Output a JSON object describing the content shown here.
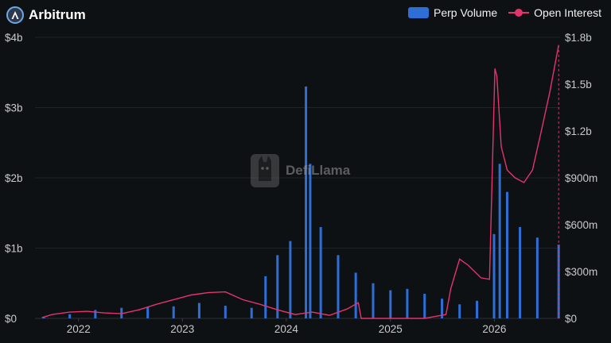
{
  "header": {
    "title": "Arbitrum",
    "logo_icon": "arbitrum-logo-icon"
  },
  "legend": [
    {
      "label": "Perp Volume",
      "color": "#2d6fd6",
      "kind": "bar"
    },
    {
      "label": "Open Interest",
      "color": "#e5336b",
      "kind": "line"
    }
  ],
  "watermark": {
    "text": "DefiLlama",
    "icon": "llama-icon"
  },
  "chart_data": {
    "type": "bar",
    "x_axis": {
      "type": "time",
      "range": [
        "2021-08-01",
        "2026-08-20"
      ],
      "tick_labels": [
        "2022",
        "2023",
        "2024",
        "2025",
        "2026"
      ],
      "tick_dates": [
        "2022-01-01",
        "2023-01-01",
        "2024-01-01",
        "2025-01-01",
        "2026-01-01"
      ]
    },
    "y_left": {
      "label": "",
      "ylim": [
        0,
        4000000000
      ],
      "tick_labels": [
        "$0",
        "$1b",
        "$2b",
        "$3b",
        "$4b"
      ],
      "tick_values": [
        0,
        1000000000,
        2000000000,
        3000000000,
        4000000000
      ]
    },
    "y_right": {
      "label": "",
      "ylim": [
        0,
        1800000000
      ],
      "tick_labels": [
        "$0",
        "$300m",
        "$600m",
        "$900m",
        "$1.2b",
        "$1.5b",
        "$1.8b"
      ],
      "tick_values": [
        0,
        300000000,
        600000000,
        900000000,
        1200000000,
        1500000000,
        1800000000
      ]
    },
    "grid": true,
    "legend_position": "top-right",
    "series": [
      {
        "name": "Perp Volume",
        "type": "bar",
        "axis": "left",
        "color": "#2d6fd6",
        "x": [
          "2021-09-01",
          "2021-12-01",
          "2022-03-01",
          "2022-06-01",
          "2022-09-01",
          "2022-12-01",
          "2023-03-01",
          "2023-06-01",
          "2023-09-01",
          "2023-10-20",
          "2023-12-01",
          "2024-01-15",
          "2024-03-10",
          "2024-03-25",
          "2024-05-01",
          "2024-07-01",
          "2024-09-01",
          "2024-11-01",
          "2025-01-01",
          "2025-03-01",
          "2025-05-01",
          "2025-07-01",
          "2025-09-01",
          "2025-11-01",
          "2025-12-31",
          "2026-01-20",
          "2026-02-15",
          "2026-04-01",
          "2026-06-01",
          "2026-08-15"
        ],
        "values": [
          20000000,
          60000000,
          120000000,
          150000000,
          160000000,
          170000000,
          220000000,
          180000000,
          150000000,
          600000000,
          900000000,
          1100000000,
          3300000000,
          2200000000,
          1300000000,
          900000000,
          650000000,
          500000000,
          400000000,
          420000000,
          350000000,
          280000000,
          200000000,
          250000000,
          1200000000,
          2200000000,
          1800000000,
          1300000000,
          1150000000,
          1050000000
        ]
      },
      {
        "name": "Open Interest",
        "type": "line",
        "axis": "right",
        "color": "#e5336b",
        "x": [
          "2021-08-25",
          "2021-10-01",
          "2021-12-01",
          "2022-02-01",
          "2022-04-01",
          "2022-06-01",
          "2022-08-01",
          "2022-10-01",
          "2022-12-01",
          "2023-02-01",
          "2023-04-01",
          "2023-06-01",
          "2023-08-01",
          "2023-10-01",
          "2023-12-01",
          "2024-02-01",
          "2024-04-01",
          "2024-06-01",
          "2024-08-01",
          "2024-09-10",
          "2024-09-20",
          "2024-12-01",
          "2025-03-01",
          "2025-05-01",
          "2025-06-15",
          "2025-07-15",
          "2025-08-01",
          "2025-09-01",
          "2025-10-01",
          "2025-11-15",
          "2025-12-15",
          "2026-01-03",
          "2026-01-10",
          "2026-01-25",
          "2026-02-15",
          "2026-03-15",
          "2026-04-15",
          "2026-05-15",
          "2026-06-15",
          "2026-07-15",
          "2026-08-15"
        ],
        "values": [
          5000000,
          25000000,
          40000000,
          45000000,
          35000000,
          30000000,
          55000000,
          90000000,
          120000000,
          150000000,
          165000000,
          170000000,
          120000000,
          90000000,
          55000000,
          25000000,
          40000000,
          20000000,
          60000000,
          100000000,
          0,
          0,
          0,
          0,
          15000000,
          25000000,
          190000000,
          380000000,
          340000000,
          260000000,
          250000000,
          1600000000,
          1550000000,
          1100000000,
          950000000,
          900000000,
          870000000,
          950000000,
          1200000000,
          1450000000,
          1750000000
        ]
      }
    ]
  }
}
